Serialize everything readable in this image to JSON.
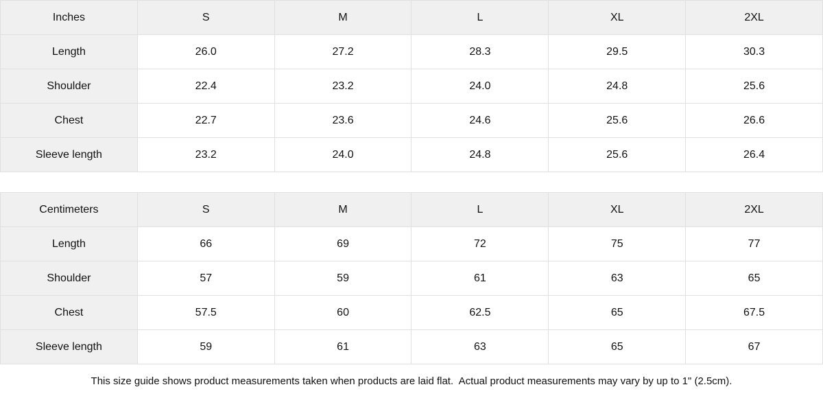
{
  "colors": {
    "header_fill": "#f0f0f0",
    "border": "#e0e0e0",
    "text": "#111111",
    "background": "#ffffff"
  },
  "tables": [
    {
      "unit": "Inches",
      "header": [
        "Inches",
        "S",
        "M",
        "L",
        "XL",
        "2XL"
      ],
      "rows": [
        {
          "label": "Length",
          "values": [
            "26.0",
            "27.2",
            "28.3",
            "29.5",
            "30.3"
          ]
        },
        {
          "label": "Shoulder",
          "values": [
            "22.4",
            "23.2",
            "24.0",
            "24.8",
            "25.6"
          ]
        },
        {
          "label": "Chest",
          "values": [
            "22.7",
            "23.6",
            "24.6",
            "25.6",
            "26.6"
          ]
        },
        {
          "label": "Sleeve length",
          "values": [
            "23.2",
            "24.0",
            "24.8",
            "25.6",
            "26.4"
          ]
        }
      ]
    },
    {
      "unit": "Centimeters",
      "header": [
        "Centimeters",
        "S",
        "M",
        "L",
        "XL",
        "2XL"
      ],
      "rows": [
        {
          "label": "Length",
          "values": [
            "66",
            "69",
            "72",
            "75",
            "77"
          ]
        },
        {
          "label": "Shoulder",
          "values": [
            "57",
            "59",
            "61",
            "63",
            "65"
          ]
        },
        {
          "label": "Chest",
          "values": [
            "57.5",
            "60",
            "62.5",
            "65",
            "67.5"
          ]
        },
        {
          "label": "Sleeve length",
          "values": [
            "59",
            "61",
            "63",
            "65",
            "67"
          ]
        }
      ]
    }
  ],
  "footer": {
    "note": "This size guide shows product measurements taken when products are laid flat.  Actual product measurements may vary by up to 1\" (2.5cm)."
  }
}
